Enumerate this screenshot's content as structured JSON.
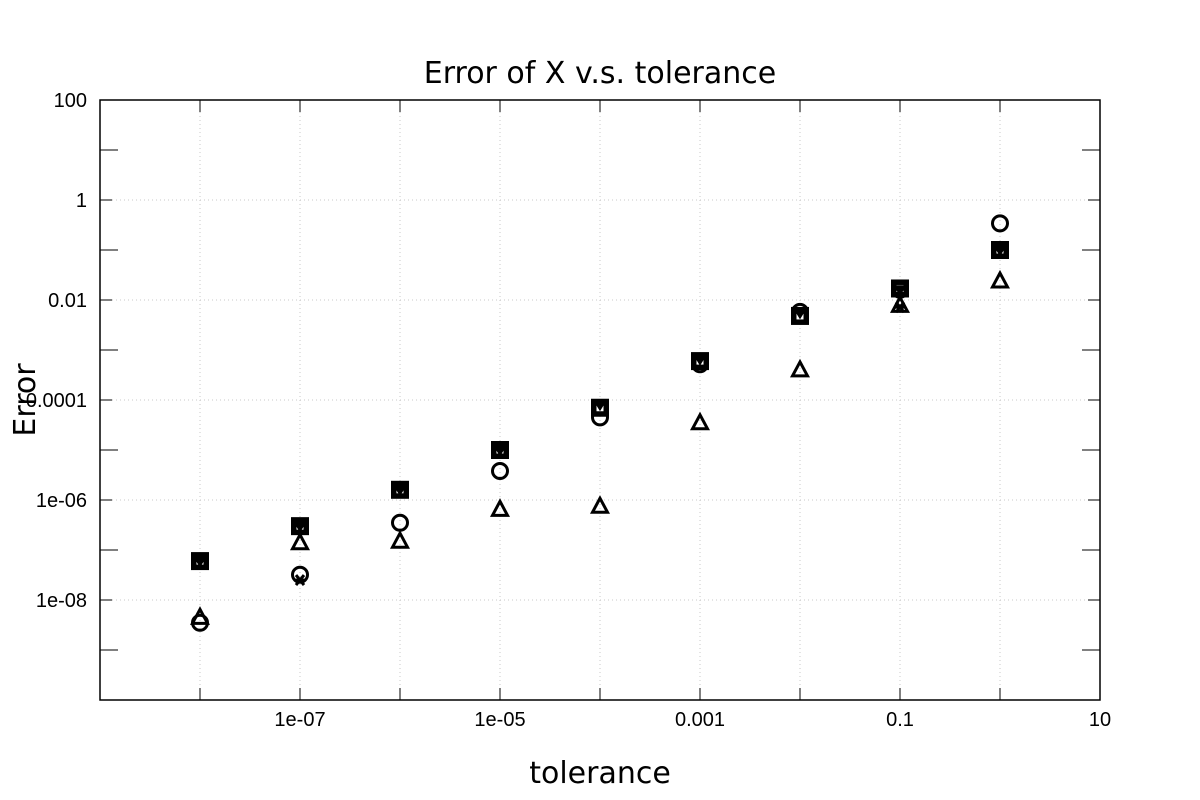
{
  "chart_data": {
    "type": "scatter",
    "title": "Error of X v.s. tolerance",
    "xlabel": "tolerance",
    "ylabel": "Error",
    "xscale": "log",
    "yscale": "log",
    "xlim": [
      1e-09,
      10
    ],
    "ylim": [
      1e-10,
      100
    ],
    "grid": true,
    "xticks": [
      {
        "value": 1e-07,
        "label": "1e-07"
      },
      {
        "value": 1e-05,
        "label": "1e-05"
      },
      {
        "value": 0.001,
        "label": "0.001"
      },
      {
        "value": 0.1,
        "label": "0.1"
      },
      {
        "value": 10,
        "label": "10"
      }
    ],
    "yticks": [
      {
        "value": 100,
        "label": "100"
      },
      {
        "value": 1,
        "label": "1"
      },
      {
        "value": 0.01,
        "label": "0.01"
      },
      {
        "value": 0.0001,
        "label": "0.0001"
      },
      {
        "value": 1e-06,
        "label": "1e-06"
      },
      {
        "value": 1e-08,
        "label": "1e-08"
      }
    ],
    "x": [
      1e-08,
      1e-07,
      1e-06,
      1e-05,
      0.0001,
      0.001,
      0.01,
      0.1,
      1
    ],
    "series": [
      {
        "marker": "circle",
        "values": [
          3.5e-09,
          3.2e-08,
          3.5e-07,
          3.8e-06,
          4.5e-05,
          0.00052,
          0.0058,
          0.016,
          0.34
        ]
      },
      {
        "marker": "square",
        "values": [
          6e-08,
          3e-07,
          1.6e-06,
          1e-05,
          7e-05,
          0.0006,
          0.0048,
          0.017,
          0.1
        ]
      },
      {
        "marker": "triangle-up",
        "values": [
          4.5e-09,
          1.4e-07,
          1.5e-07,
          6.5e-07,
          7.5e-07,
          3.5e-05,
          0.0004,
          0.0078,
          0.024
        ]
      },
      {
        "marker": "triangle-down",
        "values": [
          6e-08,
          3e-07,
          1.6e-06,
          1e-05,
          8e-05,
          0.00065,
          0.0055,
          0.016,
          0.1
        ]
      },
      {
        "marker": "star",
        "values": [
          null,
          2.5e-08,
          null,
          null,
          null,
          null,
          null,
          0.0072,
          null
        ]
      }
    ]
  }
}
